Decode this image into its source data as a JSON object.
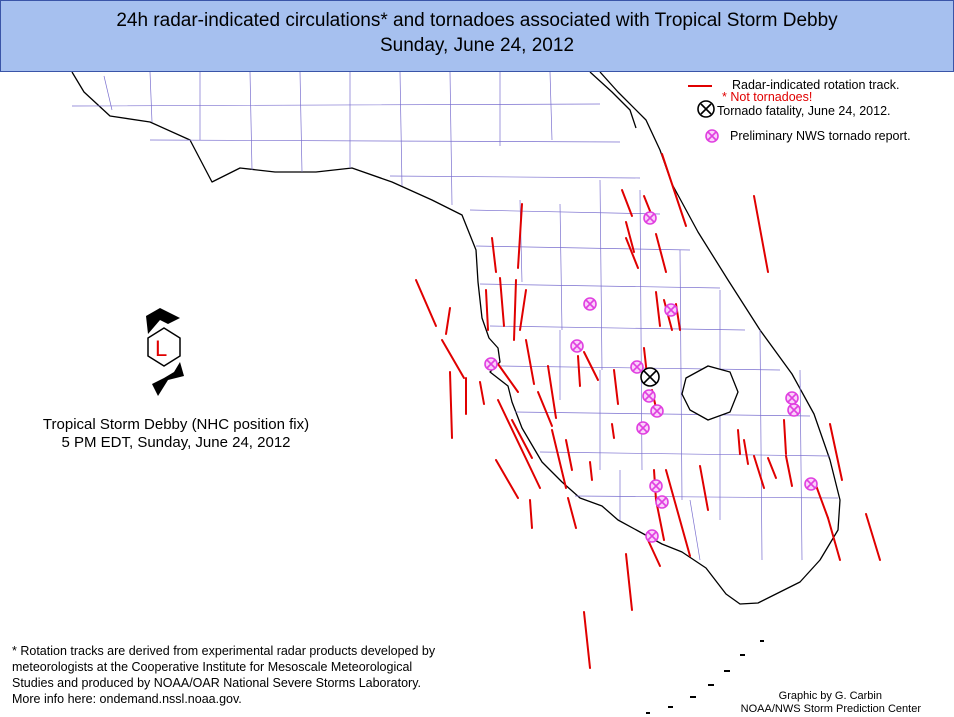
{
  "header": {
    "title": "24h radar-indicated circulations* and tornadoes associated with Tropical Storm Debby",
    "subtitle": "Sunday, June 24, 2012"
  },
  "legend": {
    "rotation_track": "Radar-indicated rotation track.",
    "not_tornadoes": "* Not tornadoes!",
    "fatality": "Tornado fatality, June 24, 2012.",
    "report": "Preliminary NWS tornado report."
  },
  "storm": {
    "symbol_letter": "L",
    "label": "Tropical Storm Debby (NHC position fix)",
    "time": "5 PM EDT, Sunday, June 24, 2012"
  },
  "footnote": {
    "line1": "* Rotation tracks are derived from experimental radar products developed by",
    "line2": "meteorologists at the Cooperative Institute for Mesoscale Meteorological",
    "line3": "Studies and produced by NOAA/OAR National Severe Storms Laboratory.",
    "line4": "More info here: ondemand.nssl.noaa.gov."
  },
  "credits": {
    "line1": "Graphic by G. Carbin",
    "line2": "NOAA/NWS Storm Prediction Center"
  },
  "colors": {
    "header_bg": "#a6c0ef",
    "track": "#e00000",
    "report": "#e040e0",
    "coast": "#000000",
    "county": "#7a6fcf"
  },
  "icons": {
    "track": "red-line-segment",
    "fatality": "circled-x-black",
    "report": "circled-x-magenta",
    "storm": "tropical-storm-symbol"
  }
}
